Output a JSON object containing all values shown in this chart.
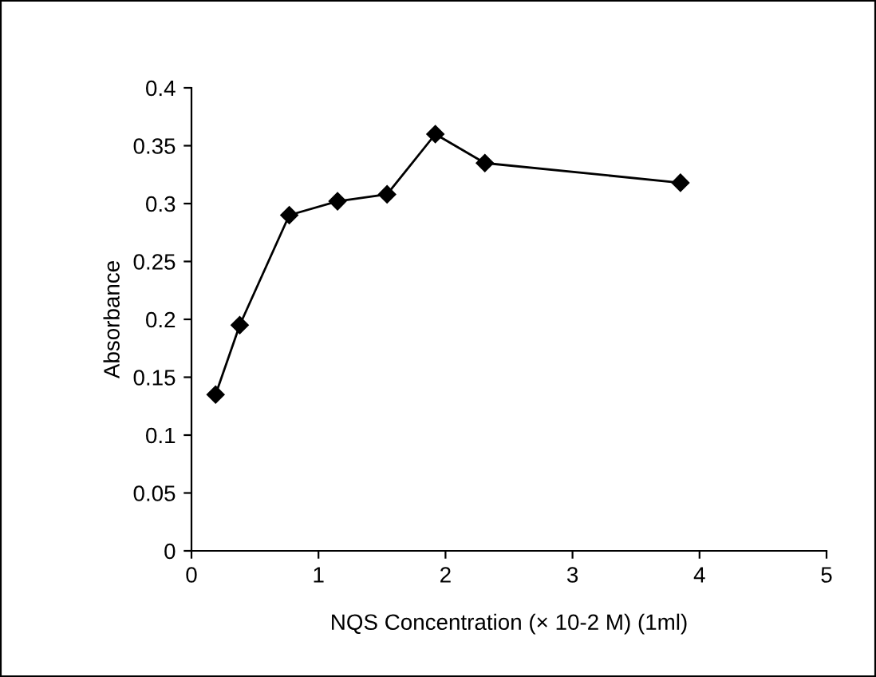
{
  "chart_data": {
    "type": "line",
    "xlabel": "NQS Concentration (× 10-2 M) (1ml)",
    "ylabel": "Absorbance",
    "x": [
      0.19,
      0.38,
      0.77,
      1.15,
      1.54,
      1.92,
      2.31,
      3.85
    ],
    "series": [
      {
        "color": "#000000",
        "values": [
          0.135,
          0.195,
          0.29,
          0.302,
          0.308,
          0.36,
          0.335,
          0.318
        ]
      }
    ],
    "xlim": [
      0,
      5
    ],
    "xticks": [
      0,
      1,
      2,
      3,
      4,
      5
    ],
    "ylim": [
      0,
      0.4
    ],
    "yticks": [
      0,
      0.05,
      0.1,
      0.15,
      0.2,
      0.25,
      0.3,
      0.35,
      0.4
    ],
    "marker": "diamond",
    "line_style": "solid",
    "grid": false,
    "legend": false
  }
}
